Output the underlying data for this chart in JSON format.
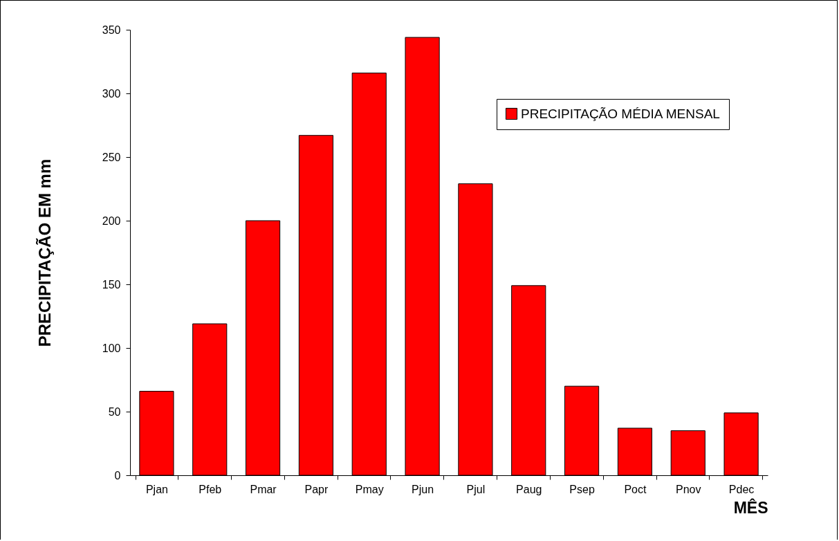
{
  "chart_data": {
    "type": "bar",
    "xlabel": "MÊS",
    "ylabel": "PRECIPITAÇÃO EM mm",
    "categories": [
      "Pjan",
      "Pfeb",
      "Pmar",
      "Papr",
      "Pmay",
      "Pjun",
      "Pjul",
      "Paug",
      "Psep",
      "Poct",
      "Pnov",
      "Pdec"
    ],
    "series": [
      {
        "name": "PRECIPITAÇÃO MÉDIA MENSAL",
        "color": "#ff0000",
        "values": [
          66,
          119,
          200,
          267,
          316,
          344,
          229,
          149,
          70,
          37,
          35,
          49
        ]
      }
    ],
    "ylim": [
      0,
      350
    ],
    "yticks": [
      0,
      50,
      100,
      150,
      200,
      250,
      300,
      350
    ],
    "grid": false,
    "legend": "top right"
  }
}
